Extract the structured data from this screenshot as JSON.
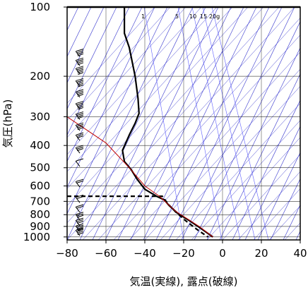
{
  "chart_data": {
    "type": "line",
    "xlabel": "気温(実線), 露点(破線)",
    "ylabel": "気圧(hPa)",
    "xlim": [
      -80,
      40
    ],
    "ylim": [
      1030,
      100
    ],
    "yscale": "log",
    "x_ticks": [
      -80,
      -60,
      -40,
      -20,
      0,
      20,
      40
    ],
    "x_tick_labels": [
      "−80",
      "−60",
      "−40",
      "−20",
      "0",
      "20",
      "40"
    ],
    "y_ticks": [
      100,
      200,
      300,
      400,
      500,
      600,
      700,
      800,
      900,
      1000
    ],
    "y_tick_labels": [
      "100",
      "200",
      "300",
      "400",
      "500",
      "600",
      "700",
      "800",
      "900",
      "1000"
    ],
    "mixing_ratio_labels": [
      {
        "text": "1",
        "value": 1
      },
      {
        "text": "5",
        "value": 5
      },
      {
        "text": "10",
        "value": 10
      },
      {
        "text": "15",
        "value": 15
      },
      {
        "text": "20g",
        "value": 20
      }
    ],
    "series": [
      {
        "role": "temperature",
        "style": "solid",
        "color": "#000000",
        "points": [
          [
            -50.5,
            100
          ],
          [
            -50.5,
            130
          ],
          [
            -48,
            150
          ],
          [
            -45,
            200
          ],
          [
            -43.5,
            250
          ],
          [
            -43,
            290
          ],
          [
            -45,
            320
          ],
          [
            -48,
            360
          ],
          [
            -51.5,
            420
          ],
          [
            -50.5,
            470
          ],
          [
            -47,
            510
          ],
          [
            -44,
            560
          ],
          [
            -40,
            620
          ],
          [
            -34,
            665
          ],
          [
            -30,
            690
          ],
          [
            -27.5,
            730
          ],
          [
            -23,
            790
          ],
          [
            -17,
            850
          ],
          [
            -11,
            920
          ],
          [
            -5,
            1000
          ]
        ]
      },
      {
        "role": "dewpoint",
        "style": "dashed",
        "color": "#000000",
        "points": [
          [
            -80,
            665
          ],
          [
            -31,
            665
          ],
          [
            -28,
            720
          ],
          [
            -24,
            780
          ],
          [
            -19,
            850
          ],
          [
            -13,
            930
          ],
          [
            -7.5,
            1000
          ]
        ]
      },
      {
        "role": "parcel",
        "style": "solid",
        "color": "#c00000",
        "points": [
          [
            -80,
            300
          ],
          [
            -60,
            390
          ],
          [
            -48,
            500
          ],
          [
            -40,
            600
          ],
          [
            -32.5,
            665
          ],
          [
            -24,
            775
          ],
          [
            -12,
            900
          ],
          [
            -5,
            1000
          ]
        ]
      }
    ],
    "barbs": [
      {
        "p": 160,
        "speed": 35
      },
      {
        "p": 175,
        "speed": 40
      },
      {
        "p": 190,
        "speed": 45
      },
      {
        "p": 215,
        "speed": 45
      },
      {
        "p": 240,
        "speed": 40
      },
      {
        "p": 270,
        "speed": 45
      },
      {
        "p": 300,
        "speed": 40
      },
      {
        "p": 335,
        "speed": 35
      },
      {
        "p": 370,
        "speed": 30
      },
      {
        "p": 420,
        "speed": 25
      },
      {
        "p": 480,
        "speed": 10
      },
      {
        "p": 590,
        "speed": 20
      },
      {
        "p": 690,
        "speed": 20
      },
      {
        "p": 760,
        "speed": 20
      },
      {
        "p": 820,
        "speed": 25
      },
      {
        "p": 870,
        "speed": 30
      },
      {
        "p": 920,
        "speed": 35
      },
      {
        "p": 960,
        "speed": 35
      }
    ],
    "colors": {
      "isotherm": "#3a3acf",
      "mixing_ratio": "#5f5fff",
      "grid": "#000000",
      "parcel": "#c00000"
    }
  }
}
